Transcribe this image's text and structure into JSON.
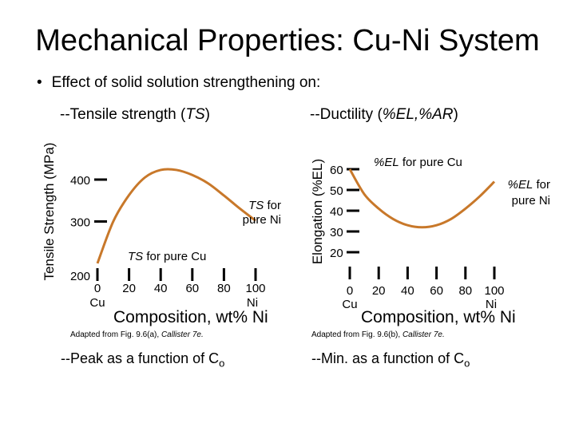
{
  "slide": {
    "title": "Mechanical Properties: Cu-Ni System",
    "bullet": "Effect of solid solution strengthening on:",
    "left_heading": "--Tensile strength (",
    "left_heading_italic": "TS",
    "left_heading_end": ")",
    "right_heading": "--Ductility (",
    "right_heading_italic": "%EL,%AR",
    "right_heading_end": ")",
    "adapted_left": "Adapted from Fig. 9.6(a), ",
    "adapted_left_italic": "Callister 7e.",
    "adapted_right": "Adapted from Fig. 9.6(b), ",
    "adapted_right_italic": "Callister 7e.",
    "note_left": "--Peak as a function of C",
    "note_left_sub": "o",
    "note_right": "--Min. as a function of C",
    "note_right_sub": "o"
  },
  "chart_data": [
    {
      "type": "line",
      "ylabel": "Tensile Strength (MPa)",
      "xlabel": "Composition, wt% Ni",
      "x_ticks": [
        "0",
        "20",
        "40",
        "60",
        "80",
        "100"
      ],
      "x_tick_sub": {
        "first": "Cu",
        "last": "Ni"
      },
      "y_ticks": [
        "200",
        "300",
        "400"
      ],
      "ylim": [
        200,
        400
      ],
      "xlim": [
        0,
        100
      ],
      "color": "#c8782a",
      "series": [
        {
          "x": [
            0,
            10,
            20,
            30,
            40,
            50,
            60,
            70,
            80,
            90,
            100
          ],
          "y": [
            200,
            300,
            363,
            405,
            423,
            423,
            411,
            391,
            362,
            331,
            302
          ]
        }
      ],
      "annotations": [
        {
          "text": "TS",
          "rest": " for pure Cu"
        },
        {
          "text": "TS",
          "rest": " for",
          "line2": "pure Ni"
        }
      ]
    },
    {
      "type": "line",
      "ylabel": "Elongation (%EL)",
      "xlabel": "Composition, wt% Ni",
      "x_ticks": [
        "0",
        "20",
        "40",
        "60",
        "80",
        "100"
      ],
      "x_tick_sub": {
        "first": "Cu",
        "last": "Ni"
      },
      "y_ticks": [
        "20",
        "30",
        "40",
        "50",
        "60"
      ],
      "ylim": [
        20,
        60
      ],
      "xlim": [
        0,
        100
      ],
      "color": "#c8782a",
      "series": [
        {
          "x": [
            0,
            10,
            20,
            30,
            40,
            50,
            60,
            70,
            80,
            90,
            100
          ],
          "y": [
            60,
            48,
            41,
            36,
            33,
            32,
            33,
            36,
            41,
            47,
            54
          ]
        }
      ],
      "annotations": [
        {
          "text": "%EL",
          "rest": " for pure Cu"
        },
        {
          "text": "%EL",
          "rest": " for",
          "line2": "pure Ni"
        }
      ]
    }
  ]
}
